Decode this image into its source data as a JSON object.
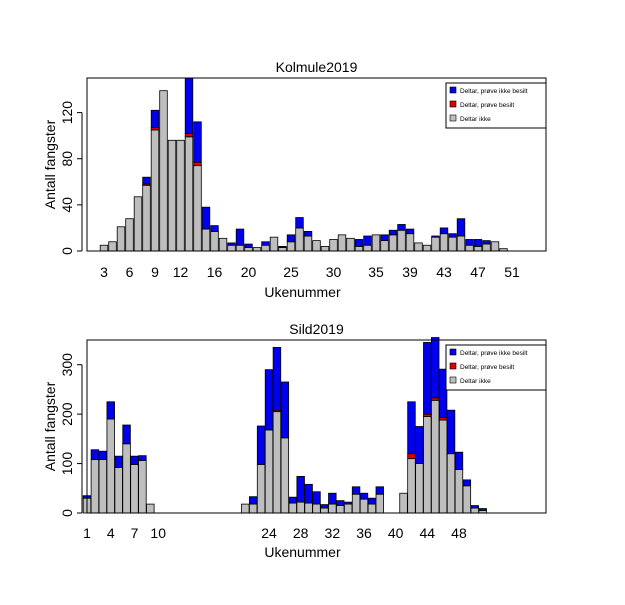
{
  "colors": {
    "ikke_besilt": "#0000ee",
    "besilt": "#dd0000",
    "deltar_ikke": "#bebebe",
    "border": "#000000"
  },
  "chart_data": [
    {
      "type": "bar",
      "stacked": true,
      "title": "Kolmule2019",
      "xlabel": "Ukenummer",
      "ylabel": "Antall fangster",
      "ylim": [
        0,
        150
      ],
      "xlim": [
        1,
        55
      ],
      "yticks": [
        0,
        40,
        80,
        120
      ],
      "xtick_labels": [
        "3",
        "6",
        "9",
        "12",
        "16",
        "20",
        "25",
        "30",
        "35",
        "39",
        "43",
        "47",
        "51"
      ],
      "xtick_weeks": [
        3,
        6,
        9,
        12,
        16,
        20,
        25,
        30,
        35,
        39,
        43,
        47,
        51
      ],
      "legend": {
        "position": "top-right",
        "entries": [
          {
            "label": "Deltar, prøve ikke besilt",
            "color_key": "ikke_besilt"
          },
          {
            "label": "Deltar, prøve besilt",
            "color_key": "besilt"
          },
          {
            "label": "Deltar ikke",
            "color_key": "deltar_ikke"
          }
        ]
      },
      "weeks": [
        3,
        4,
        5,
        6,
        7,
        8,
        9,
        10,
        11,
        12,
        13,
        14,
        15,
        16,
        17,
        18,
        19,
        20,
        21,
        22,
        23,
        24,
        25,
        26,
        27,
        28,
        29,
        30,
        31,
        32,
        33,
        34,
        35,
        36,
        37,
        38,
        39,
        40,
        41,
        42,
        43,
        44,
        45,
        46,
        47,
        48,
        49,
        50,
        51
      ],
      "series": [
        {
          "name": "Deltar ikke",
          "color_key": "deltar_ikke",
          "values": [
            5,
            8,
            21,
            28,
            47,
            57,
            105,
            139,
            96,
            96,
            99,
            74,
            19,
            17,
            11,
            5,
            5,
            3,
            3,
            5,
            12,
            3,
            8,
            20,
            13,
            9,
            4,
            10,
            14,
            11,
            4,
            5,
            14,
            9,
            14,
            18,
            15,
            7,
            5,
            12,
            15,
            12,
            13,
            5,
            4,
            6,
            8,
            2,
            0
          ]
        },
        {
          "name": "Deltar, prøve besilt",
          "color_key": "besilt",
          "values": [
            0,
            0,
            0,
            0,
            0,
            1,
            2,
            0,
            0,
            0,
            3,
            3,
            0,
            0,
            0,
            0,
            0,
            0,
            0,
            0,
            0,
            0,
            0,
            0,
            0,
            0,
            0,
            0,
            0,
            0,
            0,
            0,
            0,
            0,
            0,
            0,
            0,
            0,
            0,
            0,
            0,
            0,
            0,
            0,
            0,
            0,
            0,
            0,
            0
          ]
        },
        {
          "name": "Deltar, prøve ikke besilt",
          "color_key": "ikke_besilt",
          "values": [
            0,
            0,
            0,
            0,
            0,
            6,
            15,
            0,
            0,
            0,
            48,
            35,
            19,
            5,
            0,
            2,
            14,
            3,
            0,
            3,
            0,
            1,
            6,
            9,
            4,
            0,
            0,
            0,
            0,
            0,
            6,
            8,
            0,
            5,
            4,
            5,
            4,
            0,
            0,
            1,
            5,
            3,
            15,
            5,
            6,
            3,
            0,
            0,
            0
          ]
        }
      ]
    },
    {
      "type": "bar",
      "stacked": true,
      "title": "Sild2019",
      "xlabel": "Ukenummer",
      "ylabel": "Antall fangster",
      "ylim": [
        0,
        350
      ],
      "xlim": [
        1,
        59
      ],
      "yticks": [
        0,
        100,
        200,
        300
      ],
      "xtick_labels": [
        "1",
        "4",
        "7",
        "10",
        "24",
        "28",
        "32",
        "36",
        "40",
        "44",
        "48"
      ],
      "xtick_weeks": [
        1,
        4,
        7,
        10,
        24,
        28,
        32,
        36,
        40,
        44,
        48
      ],
      "legend": {
        "position": "top-right",
        "entries": [
          {
            "label": "Deltar, prøve ikke besilt",
            "color_key": "ikke_besilt"
          },
          {
            "label": "Deltar, prøve besilt",
            "color_key": "besilt"
          },
          {
            "label": "Deltar ikke",
            "color_key": "deltar_ikke"
          }
        ]
      },
      "weeks": [
        1,
        2,
        3,
        4,
        5,
        6,
        7,
        8,
        9,
        10,
        21,
        22,
        23,
        24,
        25,
        26,
        27,
        28,
        29,
        30,
        31,
        32,
        33,
        34,
        35,
        36,
        37,
        38,
        39,
        40,
        41,
        42,
        43,
        44,
        45,
        46,
        47,
        48,
        49,
        50,
        51,
        52
      ],
      "series": [
        {
          "name": "Deltar ikke",
          "color_key": "deltar_ikke",
          "values": [
            30,
            108,
            108,
            190,
            92,
            140,
            98,
            106,
            18,
            0,
            18,
            18,
            98,
            168,
            205,
            152,
            20,
            22,
            20,
            18,
            10,
            18,
            15,
            18,
            38,
            28,
            18,
            38,
            0,
            0,
            40,
            110,
            100,
            195,
            228,
            188,
            120,
            88,
            55,
            10,
            5,
            0
          ]
        },
        {
          "name": "Deltar, prøve besilt",
          "color_key": "besilt",
          "values": [
            0,
            0,
            0,
            0,
            0,
            0,
            0,
            0,
            0,
            0,
            0,
            0,
            0,
            0,
            3,
            0,
            0,
            0,
            0,
            0,
            0,
            0,
            0,
            0,
            0,
            0,
            0,
            0,
            0,
            0,
            0,
            10,
            0,
            5,
            5,
            5,
            0,
            0,
            0,
            0,
            0,
            0
          ]
        },
        {
          "name": "Deltar, prøve ikke besilt",
          "color_key": "ikke_besilt",
          "values": [
            5,
            20,
            17,
            35,
            23,
            38,
            17,
            10,
            0,
            0,
            0,
            15,
            78,
            122,
            127,
            113,
            12,
            52,
            38,
            25,
            7,
            22,
            10,
            4,
            15,
            12,
            12,
            15,
            0,
            0,
            0,
            105,
            75,
            145,
            122,
            98,
            88,
            35,
            12,
            5,
            4,
            0
          ]
        }
      ]
    }
  ]
}
